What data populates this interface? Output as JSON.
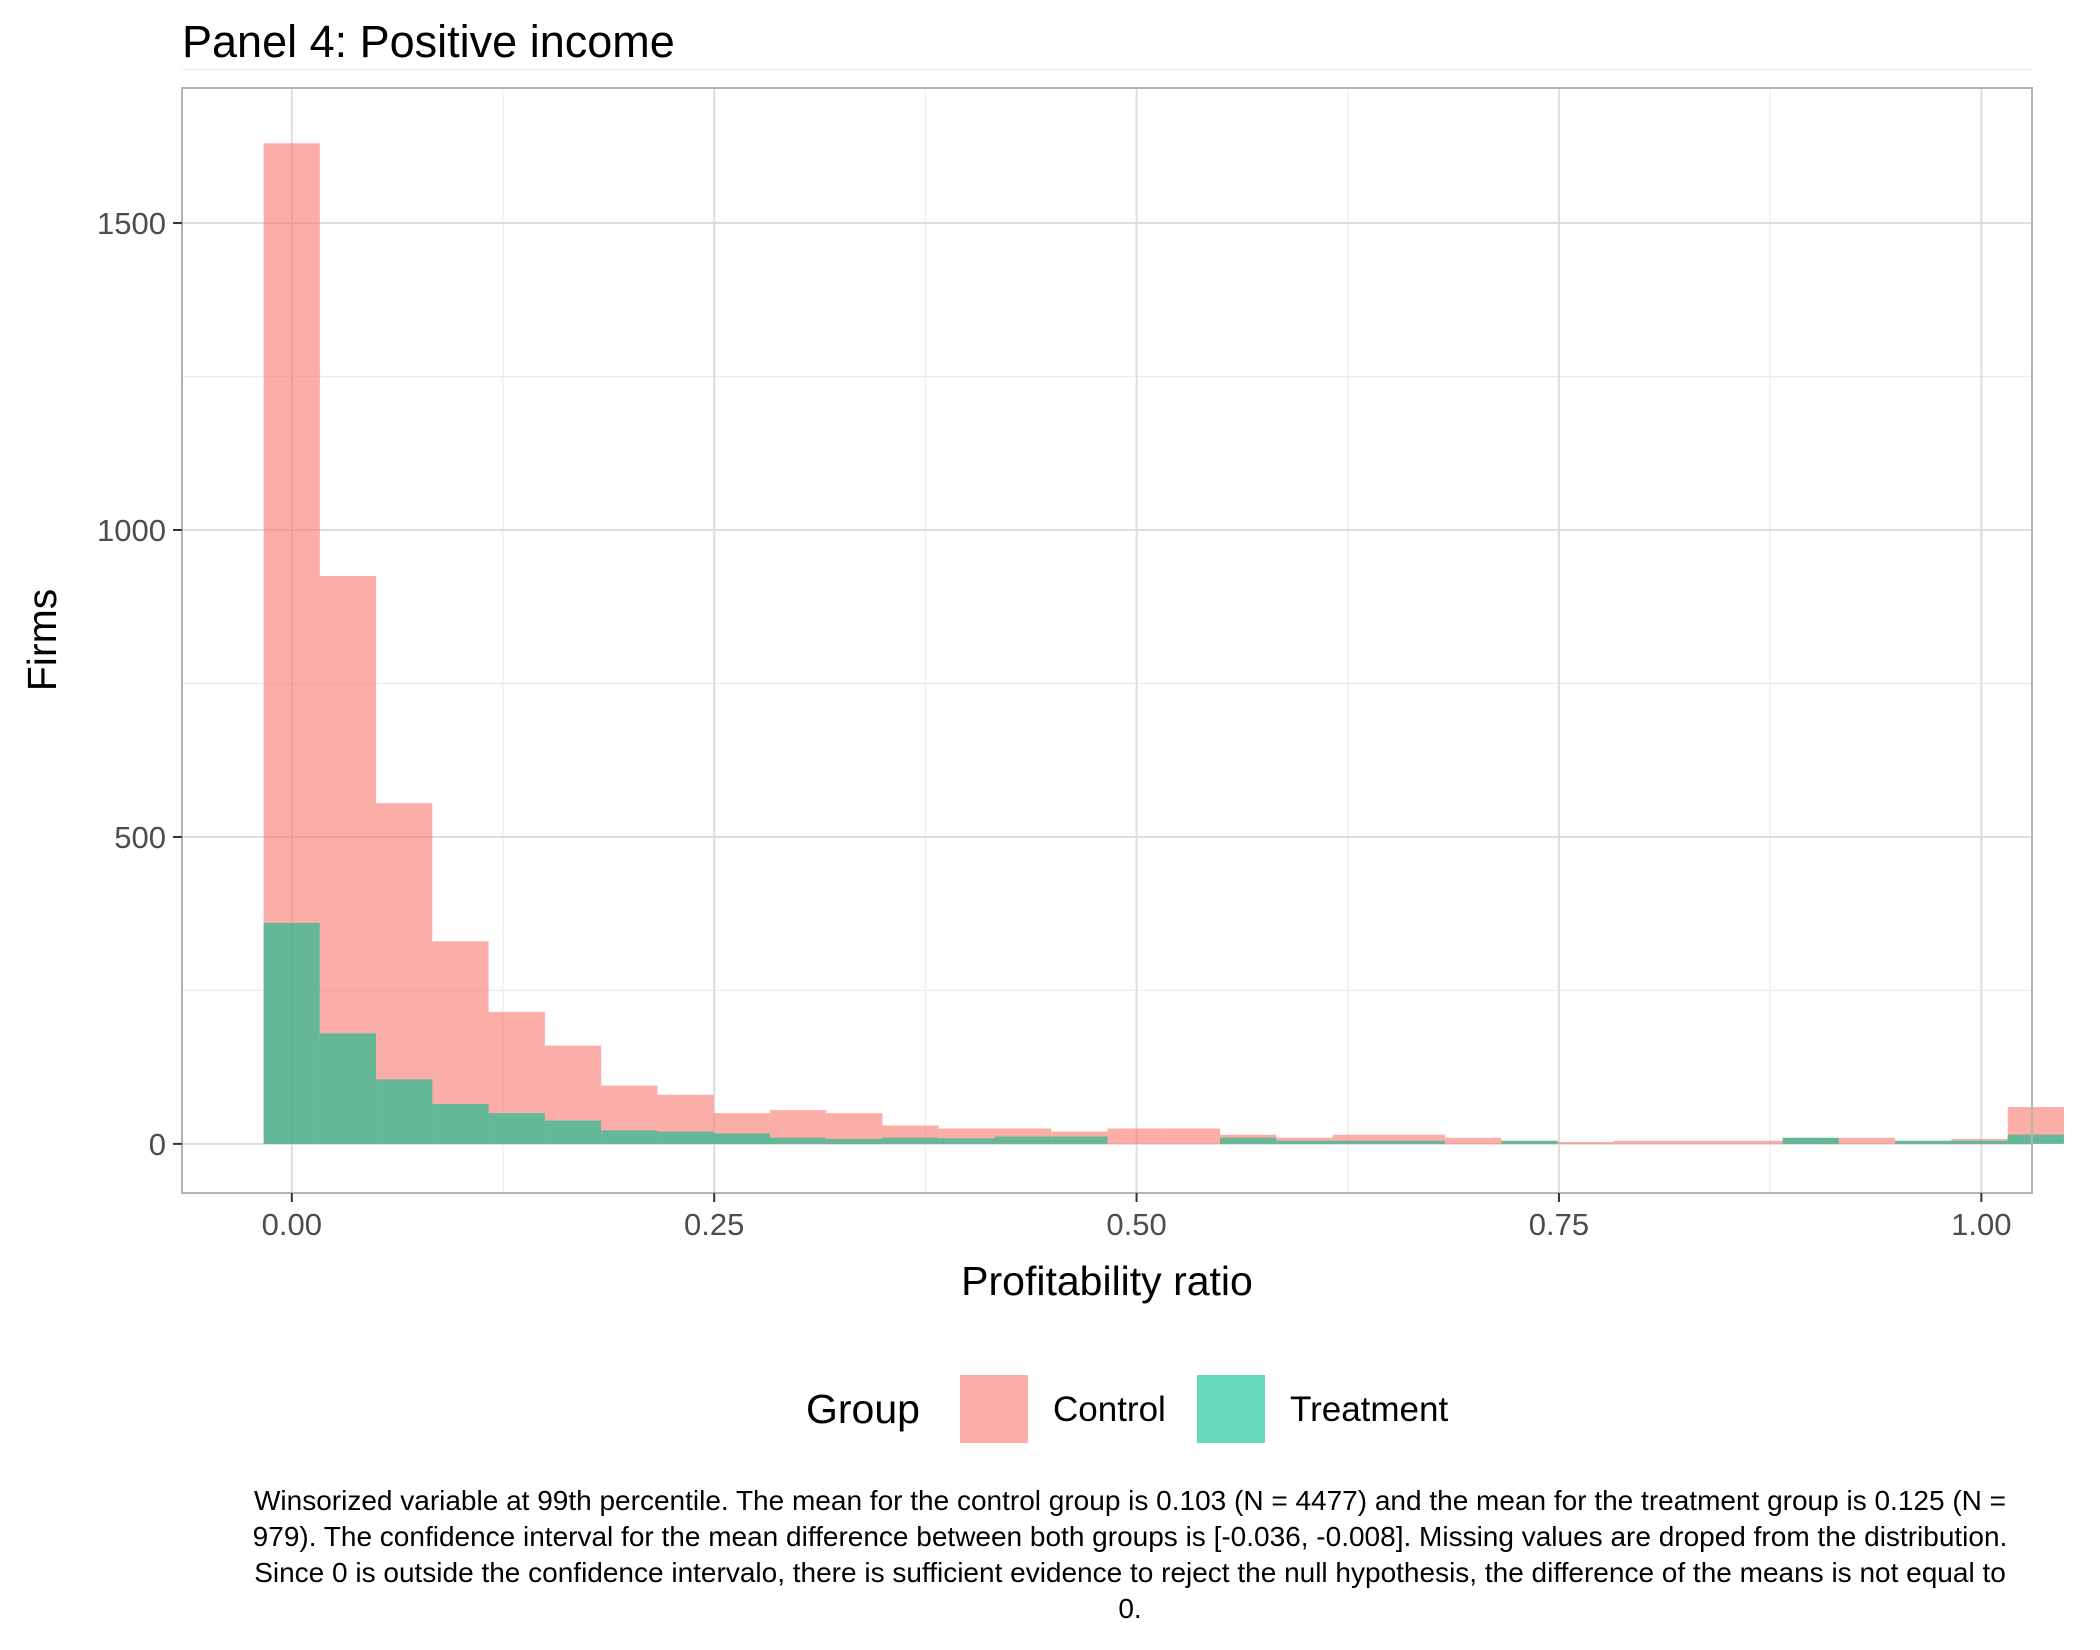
{
  "chart_data": {
    "type": "bar",
    "title": "Panel 4: Positive income",
    "xlabel": "Profitability ratio",
    "ylabel": "Firms",
    "xlim": [
      -0.065,
      1.03
    ],
    "ylim": [
      -80,
      1720
    ],
    "x_ticks": [
      0.0,
      0.25,
      0.5,
      0.75,
      1.0
    ],
    "x_tick_labels": [
      "0.00",
      "0.25",
      "0.50",
      "0.75",
      "1.00"
    ],
    "y_ticks": [
      0,
      500,
      1000,
      1500
    ],
    "y_tick_labels": [
      "0",
      "500",
      "1000",
      "1500"
    ],
    "bin_start": -0.0167,
    "bin_width": 0.0333,
    "grid": true,
    "legend": {
      "title": "Group",
      "position": "bottom"
    },
    "series": [
      {
        "name": "Control",
        "color": "#F8766D",
        "values": [
          1630,
          925,
          555,
          330,
          215,
          160,
          95,
          80,
          50,
          55,
          50,
          30,
          25,
          25,
          20,
          25,
          25,
          15,
          10,
          15,
          15,
          10,
          5,
          3,
          5,
          5,
          5,
          10,
          10,
          5,
          8,
          60
        ]
      },
      {
        "name": "Treatment",
        "color": "#00BF8C",
        "values": [
          360,
          180,
          105,
          65,
          50,
          38,
          22,
          20,
          17,
          10,
          8,
          10,
          9,
          12,
          12,
          0,
          0,
          10,
          5,
          5,
          5,
          0,
          5,
          0,
          0,
          0,
          0,
          10,
          0,
          5,
          5,
          15
        ]
      }
    ],
    "caption": "Winsorized variable at 99th percentile. The mean for the control group is 0.103 (N = 4477) and the mean for the treatment group is 0.125 (N = 979). The confidence interval for the mean difference between both groups is [-0.036, -0.008]. Missing values are droped from the distribution. Since 0 is outside the confidence intervalo, there is sufficient evidence to reject the null hypothesis, the difference of the means is not equal to 0."
  }
}
